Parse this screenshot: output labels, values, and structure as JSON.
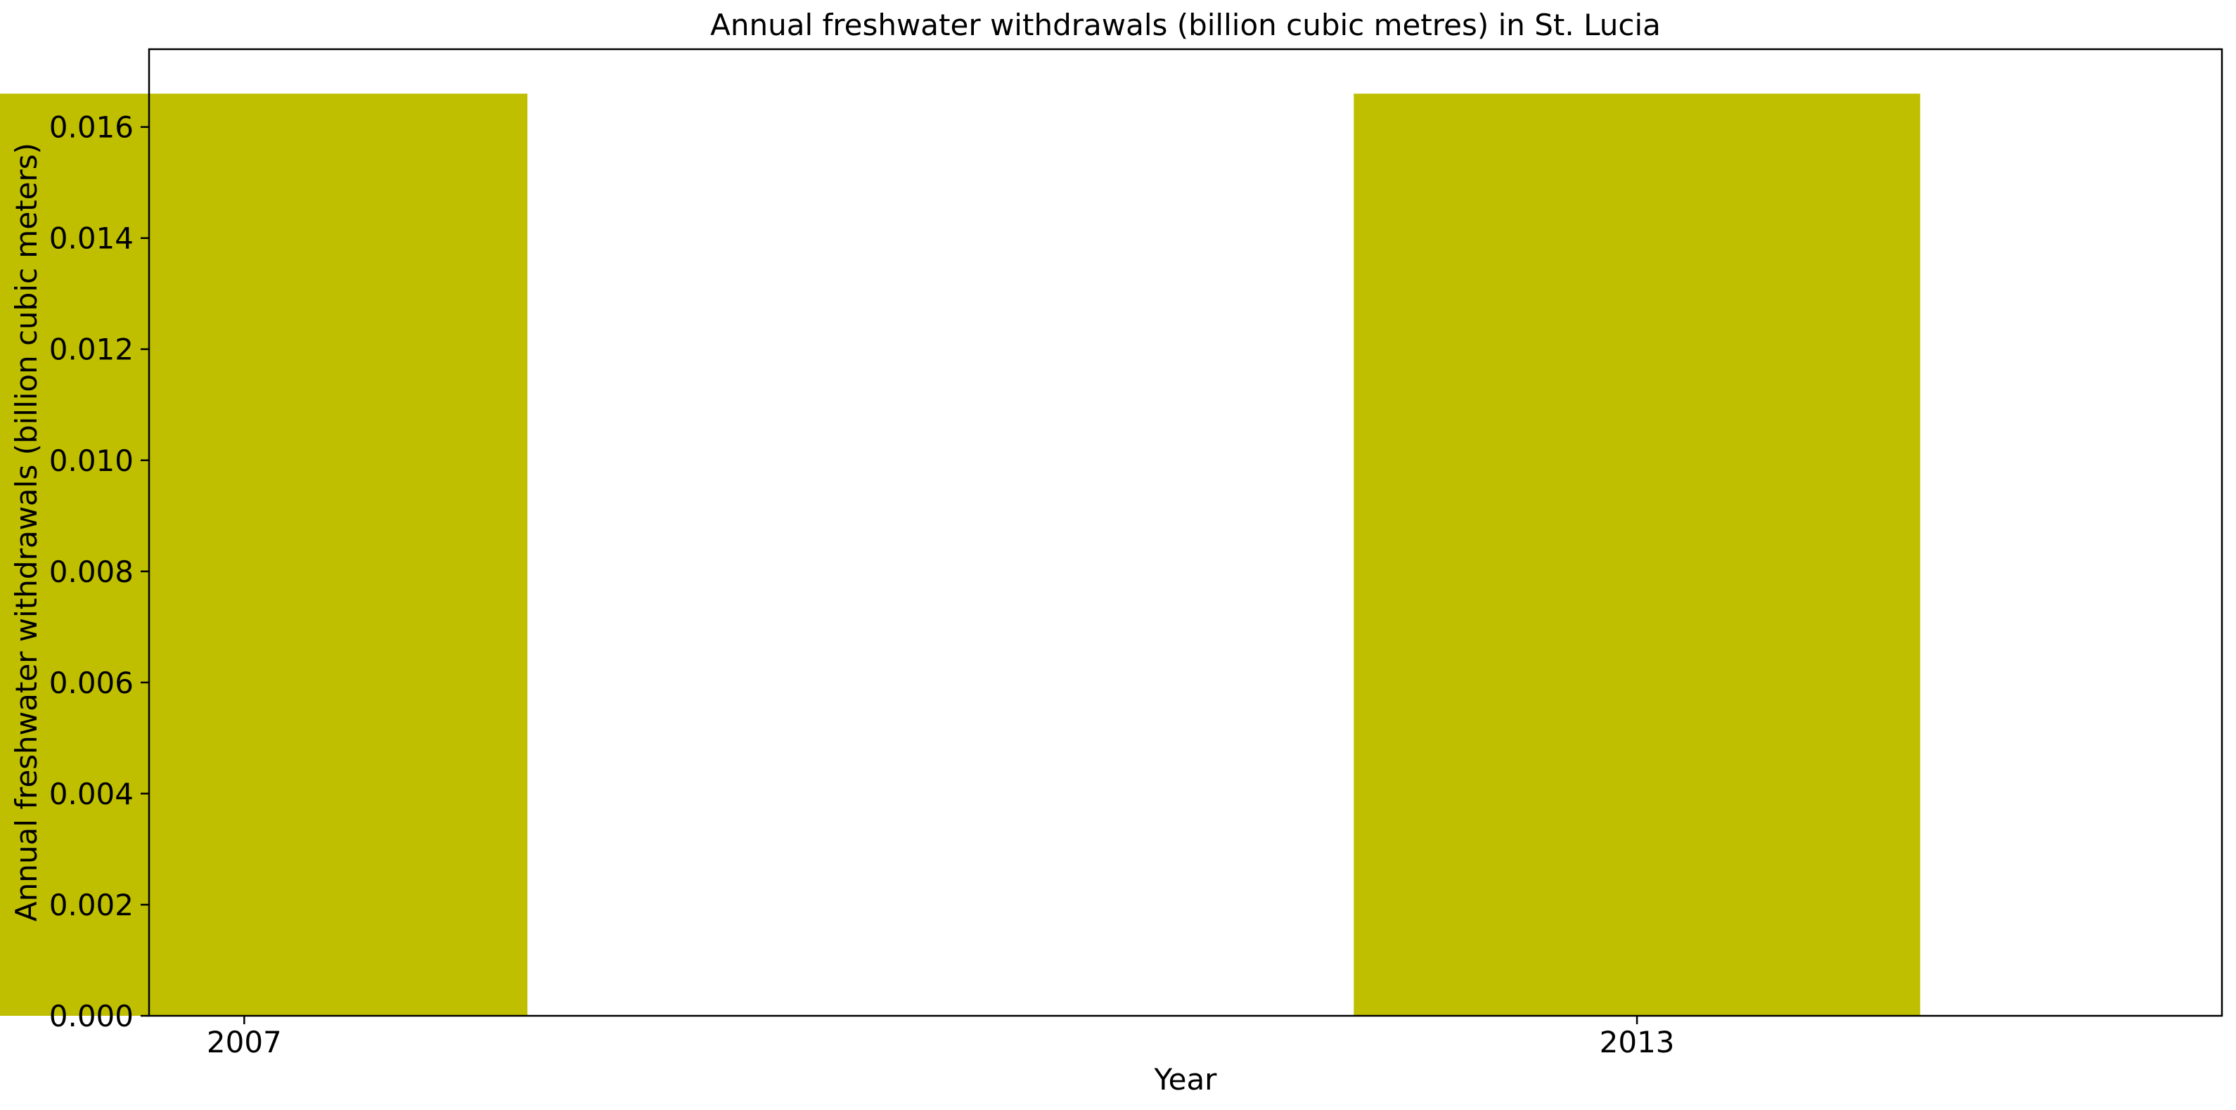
{
  "chart_data": {
    "type": "bar",
    "title": "Annual freshwater withdrawals (billion cubic metres) in St. Lucia",
    "xlabel": "Year",
    "ylabel": "Annual freshwater withdrawals (billion cubic meters)",
    "categories": [
      "2007",
      "2013"
    ],
    "x": [
      2007,
      2013
    ],
    "values": [
      0.0166,
      0.0166
    ],
    "ylim": [
      0,
      0.0174
    ],
    "xlim": [
      2006.59,
      2015.52
    ],
    "yticks": [
      "0.000",
      "0.002",
      "0.004",
      "0.006",
      "0.008",
      "0.010",
      "0.012",
      "0.014",
      "0.016"
    ],
    "ytick_values": [
      0,
      0.002,
      0.004,
      0.006,
      0.008,
      0.01,
      0.012,
      0.014,
      0.016
    ],
    "xticks": [
      "2007",
      "2013"
    ],
    "bar_color": "#bfbf00",
    "grid": false,
    "legend": false
  }
}
